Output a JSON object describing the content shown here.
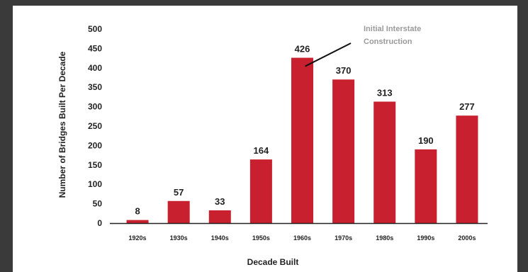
{
  "chart_data": {
    "type": "bar",
    "categories": [
      "1920s",
      "1930s",
      "1940s",
      "1950s",
      "1960s",
      "1970s",
      "1980s",
      "1990s",
      "2000s"
    ],
    "values": [
      8,
      57,
      33,
      164,
      426,
      370,
      313,
      190,
      277
    ],
    "data_labels": [
      "8",
      "57",
      "33",
      "164",
      "426",
      "370",
      "313",
      "190",
      "277"
    ],
    "title": "",
    "xlabel": "Decade Built",
    "ylabel": "Number of Bridges Built Per Decade",
    "ylim": [
      0,
      500
    ],
    "yticks": [
      0,
      50,
      100,
      150,
      200,
      250,
      300,
      350,
      400,
      450,
      500
    ],
    "ytick_labels": [
      "0",
      "50",
      "100",
      "150",
      "200",
      "250",
      "300",
      "350",
      "400",
      "450",
      "500"
    ],
    "bar_color": "#c8202e",
    "grid": false,
    "legend": "none",
    "annotation": {
      "line1": "Initial Interstate",
      "line2": "Construction",
      "target_category": "1960s"
    }
  }
}
